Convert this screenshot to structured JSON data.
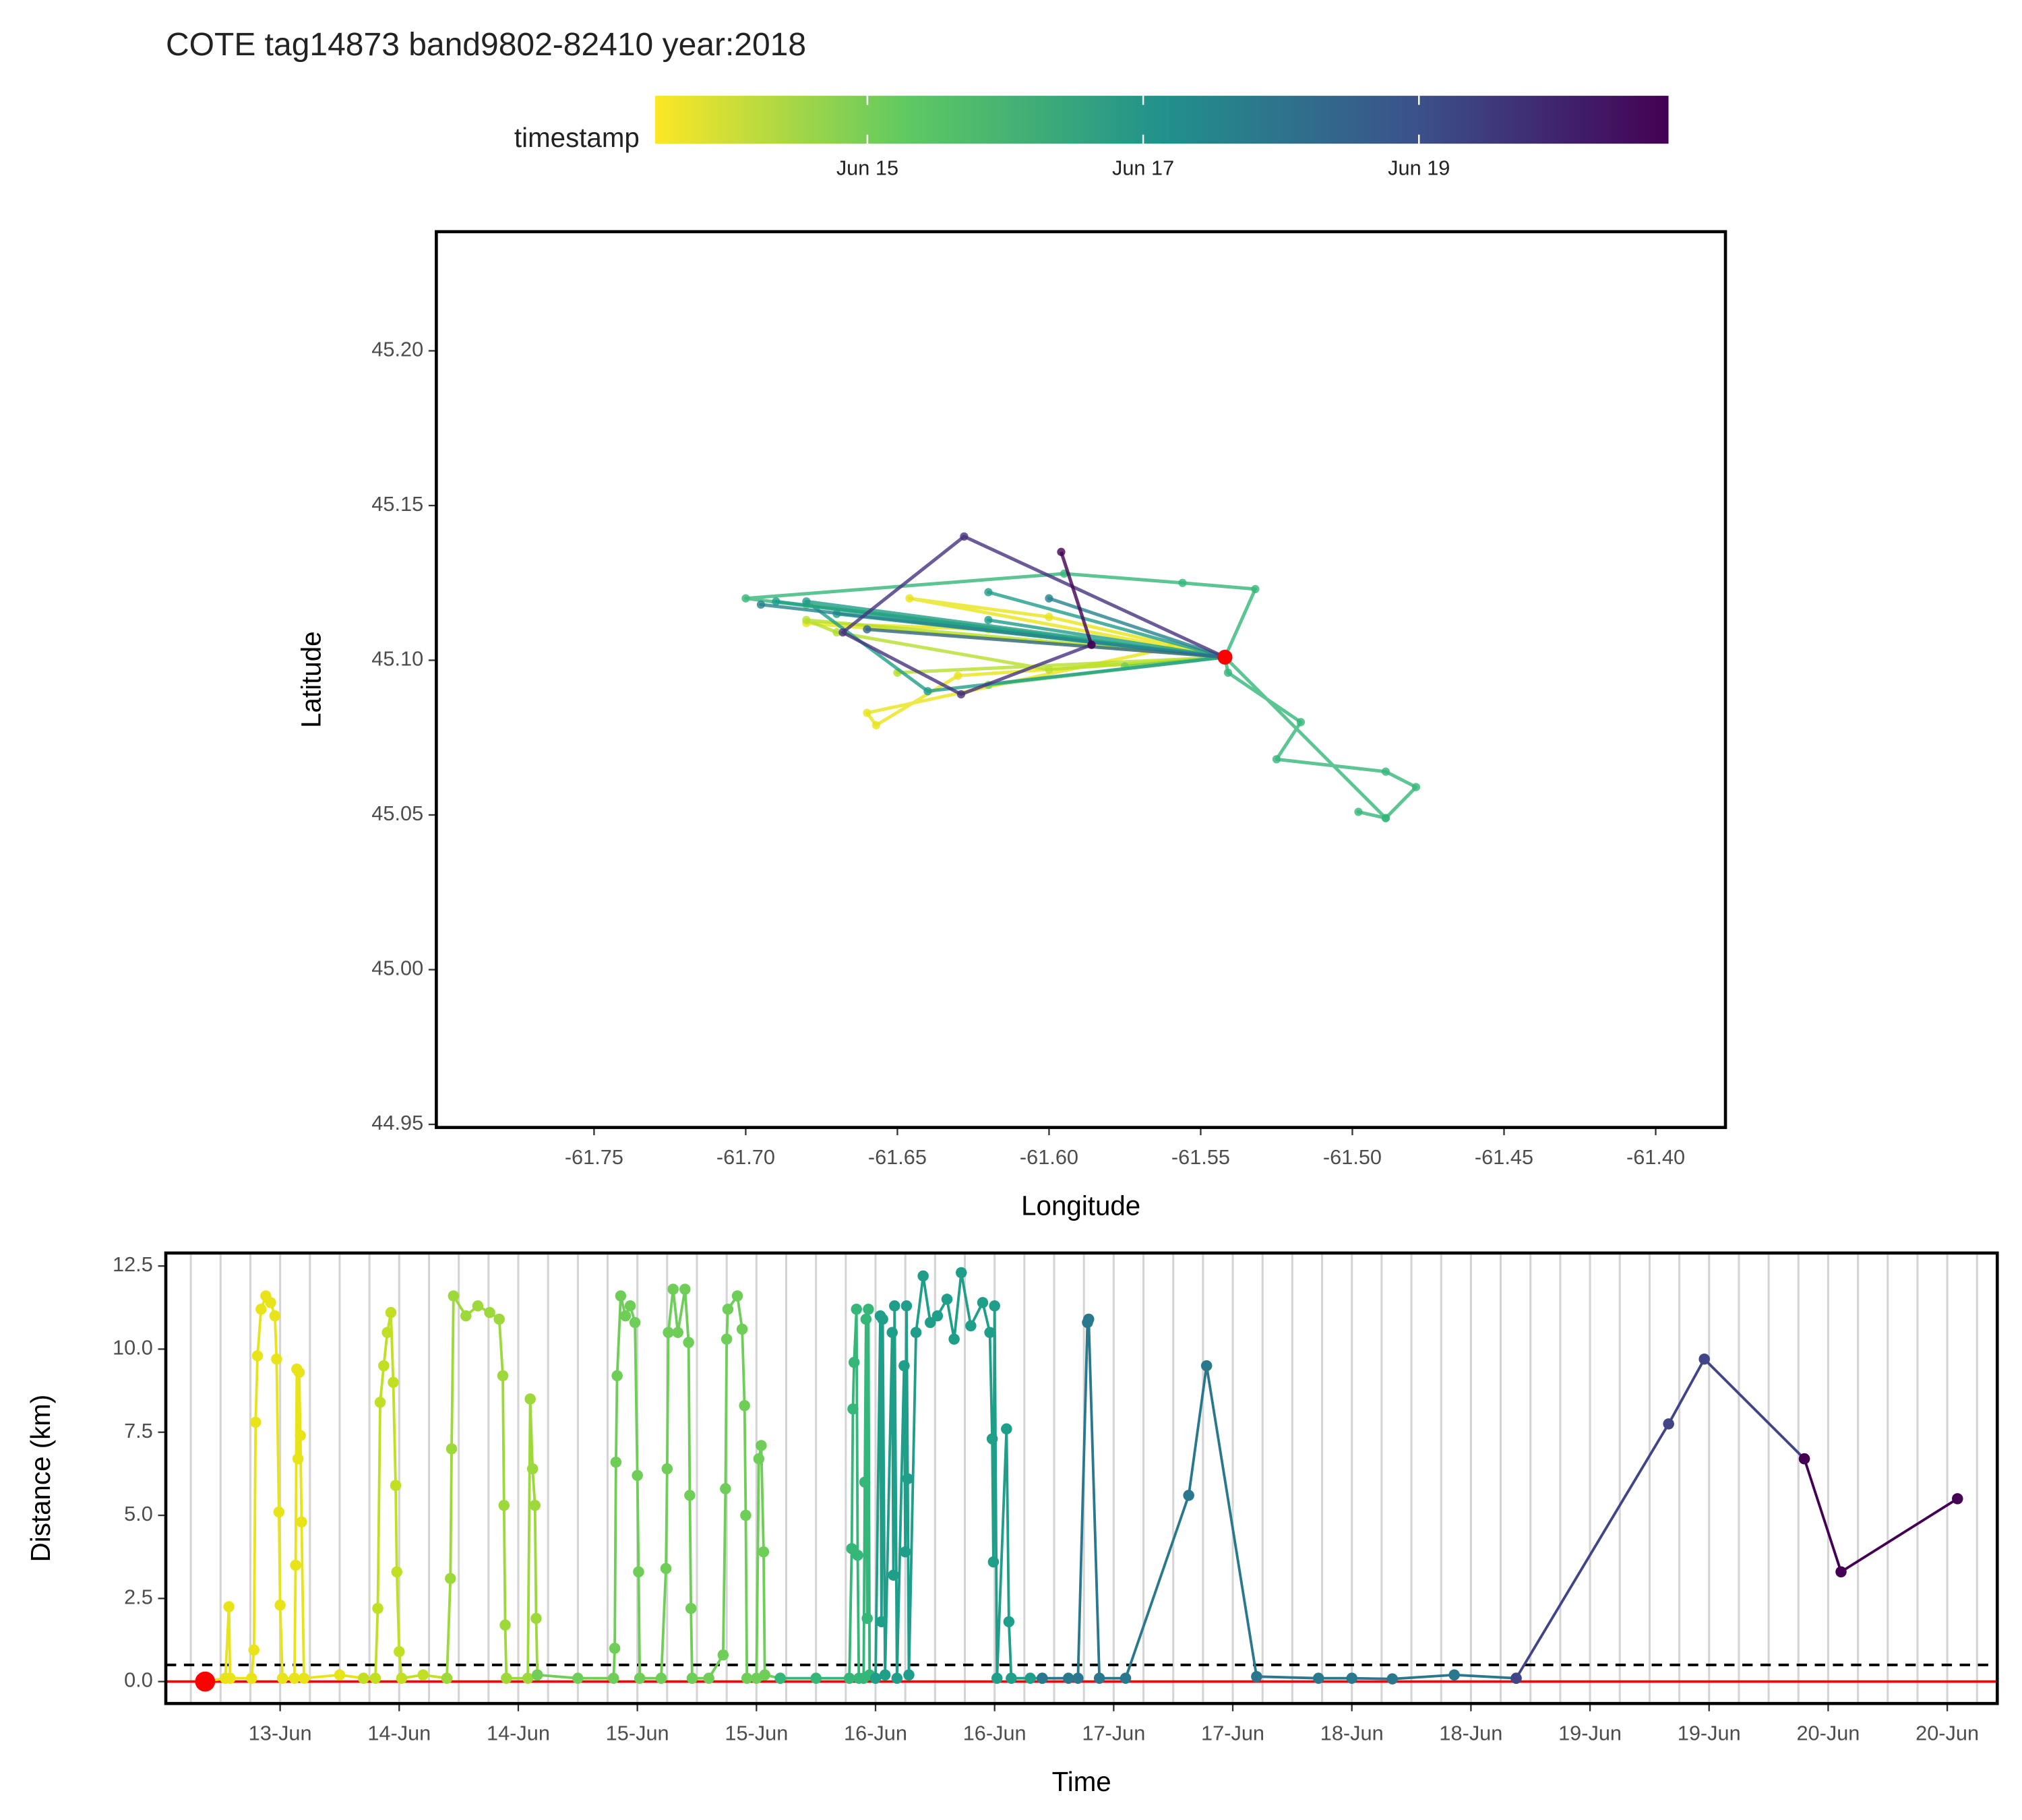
{
  "chart_data": [
    {
      "type": "line",
      "title": "COTE tag14873 band9802-82410 year:2018",
      "xlabel": "Longitude",
      "ylabel": "Latitude",
      "xlim": [
        -61.802,
        -61.377
      ],
      "ylim": [
        44.949,
        45.2385
      ],
      "xticks": [
        -61.75,
        {
          "value": -61.7,
          "label": "-61.70"
        },
        -61.65,
        {
          "value": -61.6,
          "label": "-61.60"
        },
        -61.55,
        {
          "value": -61.5,
          "label": "-61.50"
        },
        -61.45,
        {
          "value": -61.4,
          "label": "-61.40"
        }
      ],
      "yticks": [
        44.95,
        {
          "value": 45,
          "label": "45.00"
        },
        45.05,
        {
          "value": 45.1,
          "label": "45.10"
        },
        45.15,
        {
          "value": 45.2,
          "label": "45.20"
        }
      ],
      "grid": false,
      "colorbar": {
        "title": "timestamp",
        "lim": [
          13.46,
          20.81
        ],
        "ticks": [
          {
            "value": 15,
            "label": "Jun 15"
          },
          {
            "value": 17,
            "label": "Jun 17"
          },
          {
            "value": 19,
            "label": "Jun 19"
          }
        ],
        "colors": [
          "#fde725",
          "#5ec962",
          "#21918c",
          "#3b528b",
          "#440154"
        ]
      },
      "start": {
        "x": -61.542,
        "y": 45.101,
        "color": "#ff0000"
      },
      "series": [
        {
          "color": "#e8e419",
          "x": [
            -61.542,
            -61.56,
            -61.66,
            -61.657,
            -61.63,
            -61.542,
            -61.68,
            -61.62,
            -61.542,
            -61.646,
            -61.6,
            -61.542
          ],
          "values": [
            45.101,
            45.104,
            45.083,
            45.079,
            45.095,
            45.101,
            45.112,
            45.11,
            45.101,
            45.12,
            45.114,
            45.101
          ]
        },
        {
          "color": "#b5de2b",
          "x": [
            -61.542,
            -61.68,
            -61.67,
            -61.6,
            -61.542,
            -61.65,
            -61.542
          ],
          "values": [
            45.101,
            45.113,
            45.109,
            45.097,
            45.101,
            45.096,
            45.101
          ]
        },
        {
          "color": "#6ece58",
          "x": [
            -61.542,
            -61.68,
            -61.542,
            -61.62,
            -61.542,
            -61.575,
            -61.542
          ],
          "values": [
            45.101,
            45.118,
            45.101,
            45.092,
            45.101,
            45.098,
            45.101
          ]
        },
        {
          "color": "#35b779",
          "x": [
            -61.542,
            -61.541,
            -61.517,
            -61.525,
            -61.489,
            -61.479,
            -61.489,
            -61.498,
            -61.489,
            -61.542,
            -61.532,
            -61.556,
            -61.595,
            -61.7,
            -61.542
          ],
          "values": [
            45.101,
            45.096,
            45.08,
            45.068,
            45.064,
            45.059,
            45.049,
            45.051,
            45.049,
            45.101,
            45.123,
            45.125,
            45.128,
            45.12,
            45.101
          ]
        },
        {
          "color": "#1f9e89",
          "x": [
            -61.542,
            -61.69,
            -61.542,
            -61.67,
            -61.542,
            -61.62,
            -61.542,
            -61.68,
            -61.64,
            -61.542,
            -61.62,
            -61.542
          ],
          "values": [
            45.101,
            45.119,
            45.101,
            45.115,
            45.101,
            45.122,
            45.101,
            45.119,
            45.09,
            45.101,
            45.113,
            45.101
          ]
        },
        {
          "color": "#26828e",
          "x": [
            -61.542,
            -61.695,
            -61.542,
            -61.6,
            -61.542
          ],
          "values": [
            45.101,
            45.118,
            45.101,
            45.12,
            45.101
          ]
        },
        {
          "color": "#31688e",
          "x": [
            -61.542,
            -61.66,
            -61.542
          ],
          "values": [
            45.101,
            45.11,
            45.101
          ]
        },
        {
          "color": "#46327e",
          "x": [
            -61.542,
            -61.628,
            -61.668,
            -61.629,
            -61.586
          ],
          "values": [
            45.101,
            45.14,
            45.109,
            45.089,
            45.105
          ]
        },
        {
          "color": "#440154",
          "x": [
            -61.586,
            -61.596
          ],
          "values": [
            45.105,
            45.135
          ]
        }
      ]
    },
    {
      "type": "line",
      "xlabel": "Time",
      "ylabel": "Distance (km)",
      "xlim": [
        13.02,
        20.71
      ],
      "ylim": [
        -0.66,
        12.89
      ],
      "xticks": [
        {
          "value": 13.5,
          "label": "13-Jun"
        },
        {
          "value": 14,
          "label": "14-Jun"
        },
        {
          "value": 14.5,
          "label": "14-Jun"
        },
        {
          "value": 15,
          "label": "15-Jun"
        },
        {
          "value": 15.5,
          "label": "15-Jun"
        },
        {
          "value": 16,
          "label": "16-Jun"
        },
        {
          "value": 16.5,
          "label": "16-Jun"
        },
        {
          "value": 17,
          "label": "17-Jun"
        },
        {
          "value": 17.5,
          "label": "17-Jun"
        },
        {
          "value": 18,
          "label": "18-Jun"
        },
        {
          "value": 18.5,
          "label": "18-Jun"
        },
        {
          "value": 19,
          "label": "19-Jun"
        },
        {
          "value": 19.5,
          "label": "19-Jun"
        },
        {
          "value": 20,
          "label": "20-Jun"
        },
        {
          "value": 20.5,
          "label": "20-Jun"
        }
      ],
      "yticks": [
        {
          "value": 0,
          "label": "0.0"
        },
        2.5,
        {
          "value": 5,
          "label": "5.0"
        },
        7.5,
        {
          "value": 10,
          "label": "10.0"
        },
        12.5
      ],
      "xgrid_lines": [
        13.125,
        13.25,
        13.375,
        13.5,
        13.625,
        13.75,
        13.875,
        14,
        14.125,
        14.25,
        14.375,
        14.5,
        14.625,
        14.75,
        14.875,
        15,
        15.125,
        15.25,
        15.375,
        15.5,
        15.625,
        15.75,
        15.875,
        16,
        16.125,
        16.25,
        16.375,
        16.5,
        16.625,
        16.75,
        16.875,
        17,
        17.125,
        17.25,
        17.375,
        17.5,
        17.625,
        17.75,
        17.875,
        18,
        18.125,
        18.25,
        18.375,
        18.5,
        18.625,
        18.75,
        18.875,
        19,
        19.125,
        19.25,
        19.375,
        19.5,
        19.625,
        19.75,
        19.875,
        20,
        20.125,
        20.25,
        20.375,
        20.5,
        20.625
      ],
      "reference_lines": [
        {
          "y": 0.5,
          "color": "#000000",
          "dashed": true
        },
        {
          "y": 0,
          "color": "#ff0000",
          "dashed": false
        }
      ],
      "start": {
        "x": 13.185,
        "y": 0,
        "color": "#ff0000"
      },
      "series": [
        {
          "color": "#e8e419",
          "x": [
            13.185,
            13.27,
            13.285,
            13.29,
            13.38,
            13.39,
            13.397,
            13.405,
            13.42,
            13.44,
            13.46,
            13.478,
            13.485,
            13.495,
            13.5,
            13.51,
            13.56,
            13.565,
            13.57,
            13.575,
            13.58,
            13.585,
            13.59,
            13.6,
            13.75,
            13.85
          ],
          "values": [
            0,
            0.1,
            2.25,
            0.1,
            0.1,
            0.95,
            7.8,
            9.8,
            11.2,
            11.6,
            11.4,
            11,
            9.7,
            5.1,
            2.3,
            0.1,
            0.1,
            3.5,
            9.4,
            6.7,
            9.3,
            7.4,
            4.8,
            0.1,
            0.2,
            0.1
          ]
        },
        {
          "color": "#c2df23",
          "x": [
            13.85,
            13.9,
            13.91,
            13.92,
            13.935,
            13.95,
            13.965,
            13.975,
            13.985,
            13.99,
            14,
            14.01,
            14.1,
            14.2
          ],
          "values": [
            0.1,
            0.1,
            2.2,
            8.4,
            9.5,
            10.5,
            11.1,
            9,
            5.9,
            3.3,
            0.9,
            0.1,
            0.2,
            0.1
          ]
        },
        {
          "color": "#9dd93b",
          "x": [
            14.2,
            14.215,
            14.22,
            14.228,
            14.28,
            14.33,
            14.38,
            14.42,
            14.435,
            14.44,
            14.445,
            14.45,
            14.54,
            14.55,
            14.56,
            14.57,
            14.575,
            14.58
          ],
          "values": [
            0.1,
            3.1,
            7,
            11.6,
            11,
            11.3,
            11.1,
            10.9,
            9.2,
            5.3,
            1.7,
            0.1,
            0.1,
            8.5,
            6.4,
            5.3,
            1.9,
            0.2
          ]
        },
        {
          "color": "#6ece58",
          "x": [
            14.58,
            14.75,
            14.9,
            14.905,
            14.91,
            14.915,
            14.93,
            14.95,
            14.97,
            14.99,
            15,
            15.005,
            15.01,
            15.1,
            15.12,
            15.125,
            15.13,
            15.15,
            15.17,
            15.2,
            15.215,
            15.22,
            15.225,
            15.23,
            15.3,
            15.36,
            15.37,
            15.375,
            15.38,
            15.42,
            15.44,
            15.45,
            15.455,
            15.46,
            15.5,
            15.51,
            15.52,
            15.53,
            15.535,
            15.6
          ],
          "values": [
            0.2,
            0.1,
            0.1,
            1,
            6.6,
            9.2,
            11.6,
            11,
            11.3,
            10.8,
            6.2,
            3.3,
            0.1,
            0.1,
            3.4,
            6.4,
            10.5,
            11.8,
            10.5,
            11.8,
            10.2,
            5.6,
            2.2,
            0.1,
            0.1,
            0.8,
            5.8,
            10.3,
            11.2,
            11.6,
            10.6,
            8.3,
            5,
            0.1,
            0.1,
            6.7,
            7.1,
            3.9,
            0.2,
            0.1
          ]
        },
        {
          "color": "#35b779",
          "x": [
            15.6,
            15.75,
            15.89,
            15.9,
            15.905,
            15.91,
            15.92,
            15.925,
            15.93,
            15.95,
            15.955,
            15.96,
            15.965,
            15.97,
            15.975,
            16
          ],
          "values": [
            0.1,
            0.1,
            0.1,
            4,
            8.2,
            9.6,
            11.2,
            3.8,
            0.1,
            0.1,
            6,
            10.9,
            1.9,
            11.2,
            0.2,
            0.1
          ]
        },
        {
          "color": "#1f9e89",
          "x": [
            16,
            16.02,
            16.025,
            16.03,
            16.04,
            16.07,
            16.075,
            16.08,
            16.09,
            16.12,
            16.125,
            16.13,
            16.135,
            16.14,
            16.17,
            16.2,
            16.23,
            16.26,
            16.3,
            16.33,
            16.36,
            16.4,
            16.45,
            16.48,
            16.49,
            16.495,
            16.5,
            16.51,
            16.55,
            16.56,
            16.57,
            16.65,
            16.7
          ],
          "values": [
            0.1,
            11,
            1.8,
            10.9,
            0.2,
            10.5,
            3.2,
            11.3,
            0.1,
            9.5,
            3.9,
            11.3,
            6.1,
            0.2,
            10.5,
            12.2,
            10.8,
            11,
            11.5,
            10.3,
            12.3,
            10.7,
            11.4,
            10.5,
            7.3,
            3.6,
            11.3,
            0.1,
            7.6,
            1.8,
            0.1,
            0.1,
            0.1
          ]
        },
        {
          "color": "#2a788e",
          "x": [
            16.7,
            16.81,
            16.85,
            16.89,
            16.895,
            16.94,
            17.05,
            17.315,
            17.39,
            17.6,
            17.86,
            18,
            18.17,
            18.43,
            18.69
          ],
          "values": [
            0.1,
            0.1,
            0.1,
            10.8,
            10.9,
            0.1,
            0.1,
            5.6,
            9.5,
            0.15,
            0.1,
            0.1,
            0.08,
            0.2,
            0.1
          ]
        },
        {
          "color": "#414487",
          "x": [
            18.69,
            19.33,
            19.48,
            19.9
          ],
          "values": [
            0.1,
            7.75,
            9.7,
            6.7
          ]
        },
        {
          "color": "#440154",
          "x": [
            19.9,
            20.054,
            20.543
          ],
          "values": [
            6.7,
            3.3,
            5.5
          ]
        }
      ]
    }
  ]
}
